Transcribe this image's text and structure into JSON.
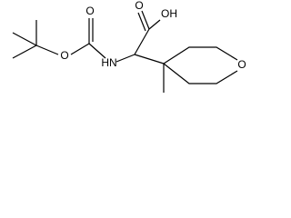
{
  "atoms": [
    {
      "label": "O"
    },
    {
      "label": "OH"
    },
    {
      "label": "HN"
    },
    {
      "label": "O"
    },
    {
      "label": "O"
    },
    {
      "label": "O"
    }
  ]
}
